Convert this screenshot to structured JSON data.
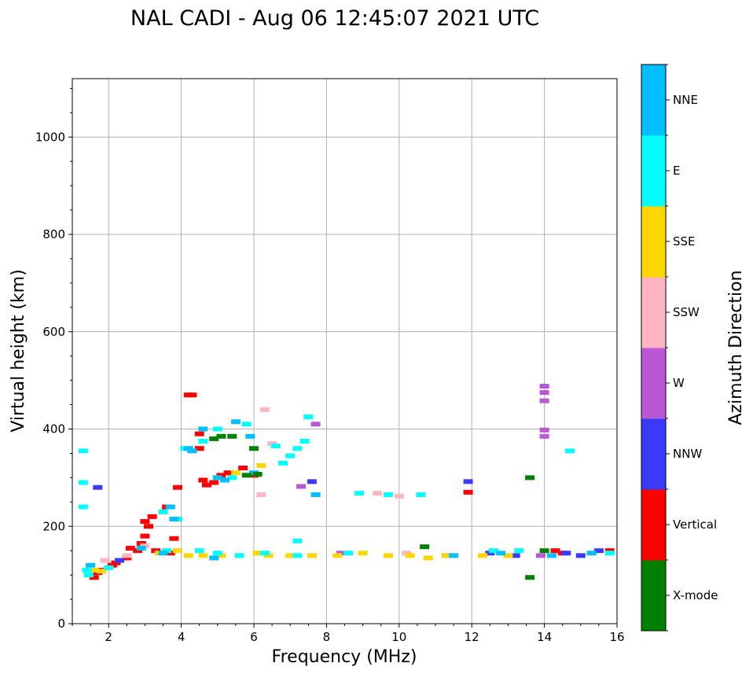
{
  "chart_data": {
    "type": "scatter",
    "title": "NAL CADI - Aug 06 12:45:07 2021 UTC",
    "xlabel": "Frequency (MHz)",
    "ylabel": "Virtual height (km)",
    "xlim": [
      1,
      16
    ],
    "ylim": [
      0,
      1120
    ],
    "xticks": [
      2,
      4,
      6,
      8,
      10,
      12,
      14,
      16
    ],
    "yticks": [
      0,
      200,
      400,
      600,
      800,
      1000
    ],
    "grid": true,
    "colorbar": {
      "label": "Azimuth Direction",
      "categories": [
        {
          "name": "X-mode",
          "color": "#008000"
        },
        {
          "name": "Vertical",
          "color": "#ff0000"
        },
        {
          "name": "NNW",
          "color": "#3a3aff"
        },
        {
          "name": "W",
          "color": "#b858d6"
        },
        {
          "name": "SSW",
          "color": "#ffb6c1"
        },
        {
          "name": "SSE",
          "color": "#ffd700"
        },
        {
          "name": "E",
          "color": "#00ffff"
        },
        {
          "name": "NNE",
          "color": "#00bfff"
        }
      ]
    },
    "series": [
      {
        "name": "Vertical",
        "points": [
          [
            1.6,
            95
          ],
          [
            1.7,
            105
          ],
          [
            1.8,
            110
          ],
          [
            2.2,
            125
          ],
          [
            2.5,
            135
          ],
          [
            2.8,
            150
          ],
          [
            2.9,
            165
          ],
          [
            3.0,
            180
          ],
          [
            3.0,
            210
          ],
          [
            3.1,
            200
          ],
          [
            3.2,
            220
          ],
          [
            3.3,
            150
          ],
          [
            3.5,
            230
          ],
          [
            3.6,
            240
          ],
          [
            3.7,
            145
          ],
          [
            3.8,
            175
          ],
          [
            4.2,
            470
          ],
          [
            4.3,
            470
          ],
          [
            4.5,
            390
          ],
          [
            4.6,
            295
          ],
          [
            4.7,
            285
          ],
          [
            4.9,
            290
          ],
          [
            5.1,
            305
          ],
          [
            5.3,
            310
          ],
          [
            5.7,
            320
          ],
          [
            6.0,
            305
          ],
          [
            2.1,
            120
          ],
          [
            11.9,
            270
          ],
          [
            14.3,
            150
          ],
          [
            14.5,
            145
          ],
          [
            15.8,
            150
          ],
          [
            2.6,
            155
          ],
          [
            3.9,
            280
          ],
          [
            4.5,
            360
          ]
        ]
      },
      {
        "name": "NNW",
        "points": [
          [
            1.7,
            280
          ],
          [
            2.3,
            130
          ],
          [
            7.6,
            292
          ],
          [
            11.9,
            292
          ],
          [
            14.6,
            145
          ],
          [
            15.0,
            140
          ],
          [
            15.5,
            150
          ],
          [
            12.5,
            145
          ],
          [
            11.3,
            140
          ],
          [
            13.2,
            140
          ]
        ]
      },
      {
        "name": "W",
        "points": [
          [
            14.0,
            488
          ],
          [
            14.0,
            475
          ],
          [
            14.0,
            458
          ],
          [
            14.0,
            398
          ],
          [
            14.0,
            385
          ],
          [
            7.3,
            282
          ],
          [
            7.7,
            410
          ],
          [
            13.9,
            140
          ],
          [
            8.4,
            145
          ]
        ]
      },
      {
        "name": "SSW",
        "points": [
          [
            6.3,
            440
          ],
          [
            6.5,
            370
          ],
          [
            9.4,
            268
          ],
          [
            10.0,
            262
          ],
          [
            6.2,
            265
          ],
          [
            10.2,
            145
          ],
          [
            3.0,
            160
          ],
          [
            2.5,
            140
          ],
          [
            1.9,
            130
          ]
        ]
      },
      {
        "name": "SSE",
        "points": [
          [
            4.2,
            140
          ],
          [
            4.6,
            140
          ],
          [
            5.1,
            140
          ],
          [
            5.6,
            140
          ],
          [
            6.1,
            145
          ],
          [
            6.4,
            140
          ],
          [
            7.0,
            140
          ],
          [
            7.6,
            140
          ],
          [
            8.3,
            140
          ],
          [
            9.0,
            145
          ],
          [
            9.7,
            140
          ],
          [
            10.3,
            140
          ],
          [
            10.8,
            135
          ],
          [
            11.3,
            140
          ],
          [
            12.3,
            140
          ],
          [
            13.0,
            140
          ],
          [
            6.2,
            325
          ],
          [
            5.5,
            310
          ],
          [
            1.6,
            110
          ],
          [
            1.8,
            108
          ],
          [
            3.4,
            145
          ],
          [
            3.9,
            150
          ]
        ]
      },
      {
        "name": "E",
        "points": [
          [
            1.3,
            355
          ],
          [
            1.3,
            290
          ],
          [
            1.3,
            240
          ],
          [
            1.4,
            110
          ],
          [
            1.45,
            100
          ],
          [
            4.5,
            150
          ],
          [
            5.0,
            145
          ],
          [
            5.6,
            140
          ],
          [
            6.3,
            145
          ],
          [
            7.2,
            140
          ],
          [
            8.9,
            268
          ],
          [
            9.7,
            265
          ],
          [
            10.6,
            265
          ],
          [
            13.3,
            150
          ],
          [
            14.7,
            355
          ],
          [
            15.8,
            145
          ],
          [
            6.8,
            330
          ],
          [
            7.0,
            345
          ],
          [
            7.2,
            360
          ],
          [
            5.2,
            295
          ],
          [
            5.4,
            300
          ],
          [
            4.6,
            375
          ],
          [
            5.0,
            400
          ],
          [
            5.8,
            410
          ],
          [
            6.6,
            365
          ],
          [
            7.4,
            375
          ],
          [
            7.5,
            425
          ],
          [
            7.2,
            170
          ],
          [
            4.1,
            360
          ],
          [
            3.9,
            215
          ],
          [
            3.5,
            230
          ],
          [
            2.0,
            115
          ],
          [
            3.6,
            150
          ],
          [
            8.6,
            145
          ],
          [
            12.6,
            150
          ]
        ]
      },
      {
        "name": "NNE",
        "points": [
          [
            4.2,
            360
          ],
          [
            4.3,
            355
          ],
          [
            3.7,
            240
          ],
          [
            3.8,
            215
          ],
          [
            5.0,
            300
          ],
          [
            6.0,
            310
          ],
          [
            5.2,
            295
          ],
          [
            7.7,
            265
          ],
          [
            11.5,
            140
          ],
          [
            12.8,
            145
          ],
          [
            14.2,
            140
          ],
          [
            15.3,
            145
          ],
          [
            4.6,
            400
          ],
          [
            5.5,
            415
          ],
          [
            5.9,
            385
          ],
          [
            1.5,
            120
          ],
          [
            2.9,
            155
          ],
          [
            3.5,
            145
          ],
          [
            4.9,
            135
          ]
        ]
      },
      {
        "name": "X-mode",
        "points": [
          [
            5.1,
            385
          ],
          [
            5.4,
            385
          ],
          [
            4.9,
            380
          ],
          [
            6.0,
            360
          ],
          [
            5.8,
            305
          ],
          [
            13.6,
            300
          ],
          [
            13.6,
            95
          ],
          [
            10.7,
            158
          ],
          [
            14.0,
            150
          ],
          [
            6.1,
            307
          ]
        ]
      }
    ]
  }
}
